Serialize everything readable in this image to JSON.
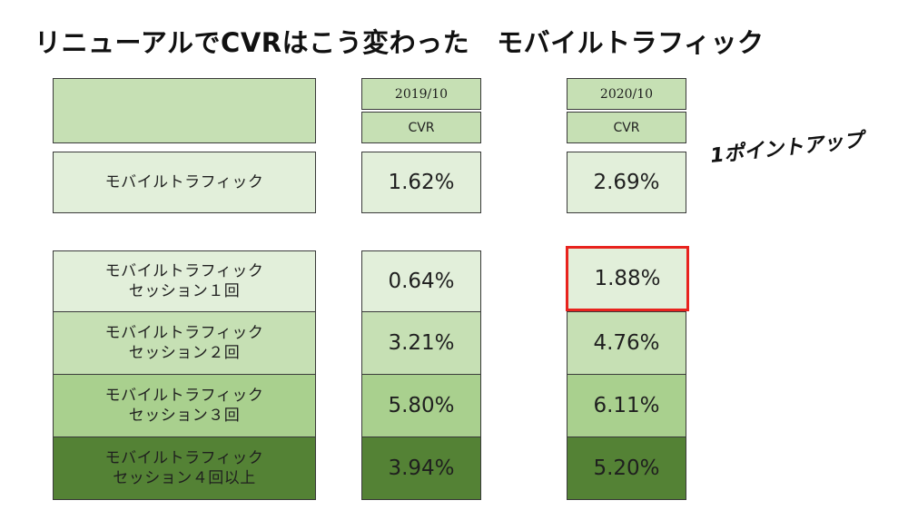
{
  "title": {
    "left": "リニューアルでCVRはこう変わった",
    "right": "モバイルトラフィック"
  },
  "annotation": "1ポイントアップ",
  "chart_data": {
    "type": "table",
    "columns": [
      {
        "period": "2019/10",
        "metric": "CVR"
      },
      {
        "period": "2020/10",
        "metric": "CVR"
      }
    ],
    "total": {
      "label": "モバイルトラフィック",
      "values": [
        "1.62%",
        "2.69%"
      ]
    },
    "sessions": [
      {
        "line1": "モバイルトラフィック",
        "line2": "セッション１回",
        "values": [
          "0.64%",
          "1.88%"
        ]
      },
      {
        "line1": "モバイルトラフィック",
        "line2": "セッション２回",
        "values": [
          "3.21%",
          "4.76%"
        ]
      },
      {
        "line1": "モバイルトラフィック",
        "line2": "セッション３回",
        "values": [
          "5.80%",
          "6.11%"
        ]
      },
      {
        "line1": "モバイルトラフィック",
        "line2": "セッション４回以上",
        "values": [
          "3.94%",
          "5.20%"
        ]
      }
    ],
    "highlighted": "1.88%",
    "colors": {
      "light": "#e2efda",
      "mid": "#c6e0b4",
      "mid2": "#a9d08e",
      "dark": "#548235",
      "highlight_border": "#e8231e"
    }
  }
}
